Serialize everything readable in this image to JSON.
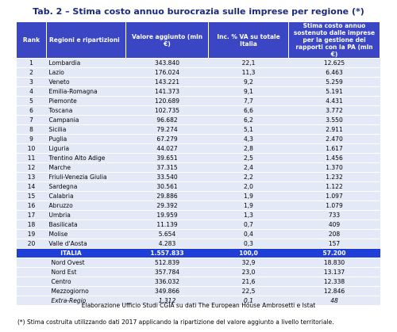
{
  "title": "Tab. 2 – Stima costo annuo burocrazia sulle imprese per regione (*)",
  "table": {
    "header": [
      "Rank",
      "Regioni e ripartizioni",
      "Valore aggiunto (mln €)",
      "Inc. % VA su totale Italia",
      "Stima costo annuo sostenuto dalle imprese per la gestione dei rapporti con la PA (mln €)"
    ],
    "rows": [
      [
        "1",
        "Lombardia",
        "343.840",
        "22,1",
        "12.625"
      ],
      [
        "2",
        "Lazio",
        "176.024",
        "11,3",
        "6.463"
      ],
      [
        "3",
        "Veneto",
        "143.221",
        "9,2",
        "5.259"
      ],
      [
        "4",
        "Emilia-Romagna",
        "141.373",
        "9,1",
        "5.191"
      ],
      [
        "5",
        "Piemonte",
        "120.689",
        "7,7",
        "4.431"
      ],
      [
        "6",
        "Toscana",
        "102.735",
        "6,6",
        "3.772"
      ],
      [
        "7",
        "Campania",
        "96.682",
        "6,2",
        "3.550"
      ],
      [
        "8",
        "Sicilia",
        "79.274",
        "5,1",
        "2.911"
      ],
      [
        "9",
        "Puglia",
        "67.279",
        "4,3",
        "2.470"
      ],
      [
        "10",
        "Liguria",
        "44.027",
        "2,8",
        "1.617"
      ],
      [
        "11",
        "Trentino Alto Adige",
        "39.651",
        "2,5",
        "1.456"
      ],
      [
        "12",
        "Marche",
        "37.315",
        "2,4",
        "1.370"
      ],
      [
        "13",
        "Friuli-Venezia Giulia",
        "33.540",
        "2,2",
        "1.232"
      ],
      [
        "14",
        "Sardegna",
        "30.561",
        "2,0",
        "1.122"
      ],
      [
        "15",
        "Calabria",
        "29.886",
        "1,9",
        "1.097"
      ],
      [
        "16",
        "Abruzzo",
        "29.392",
        "1,9",
        "1.079"
      ],
      [
        "17",
        "Umbria",
        "19.959",
        "1,3",
        "733"
      ],
      [
        "18",
        "Basilicata",
        "11.139",
        "0,7",
        "409"
      ],
      [
        "19",
        "Molise",
        "5.654",
        "0,4",
        "208"
      ],
      [
        "20",
        "Valle d'Aosta",
        "4.283",
        "0,3",
        "157"
      ]
    ],
    "total": [
      "ITALIA",
      "1.557.833",
      "100,0",
      "57.200"
    ],
    "areas": [
      [
        "Nord Ovest",
        "512.839",
        "32,9",
        "18.830"
      ],
      [
        "Nord Est",
        "357.784",
        "23,0",
        "13.137"
      ],
      [
        "Centro",
        "336.032",
        "21,6",
        "12.338"
      ],
      [
        "Mezzogiorno",
        "349.866",
        "22,5",
        "12.846"
      ],
      [
        "Extra-Regio",
        "1.312",
        "0,1",
        "48"
      ]
    ]
  },
  "source": "Elaborazione Ufficio Studi CGIA su dati The European House Ambrosetti e Istat",
  "note": "(*) Stima costruita utilizzando dati 2017 applicando la ripartizione del valore aggiunto a livello territoriale."
}
